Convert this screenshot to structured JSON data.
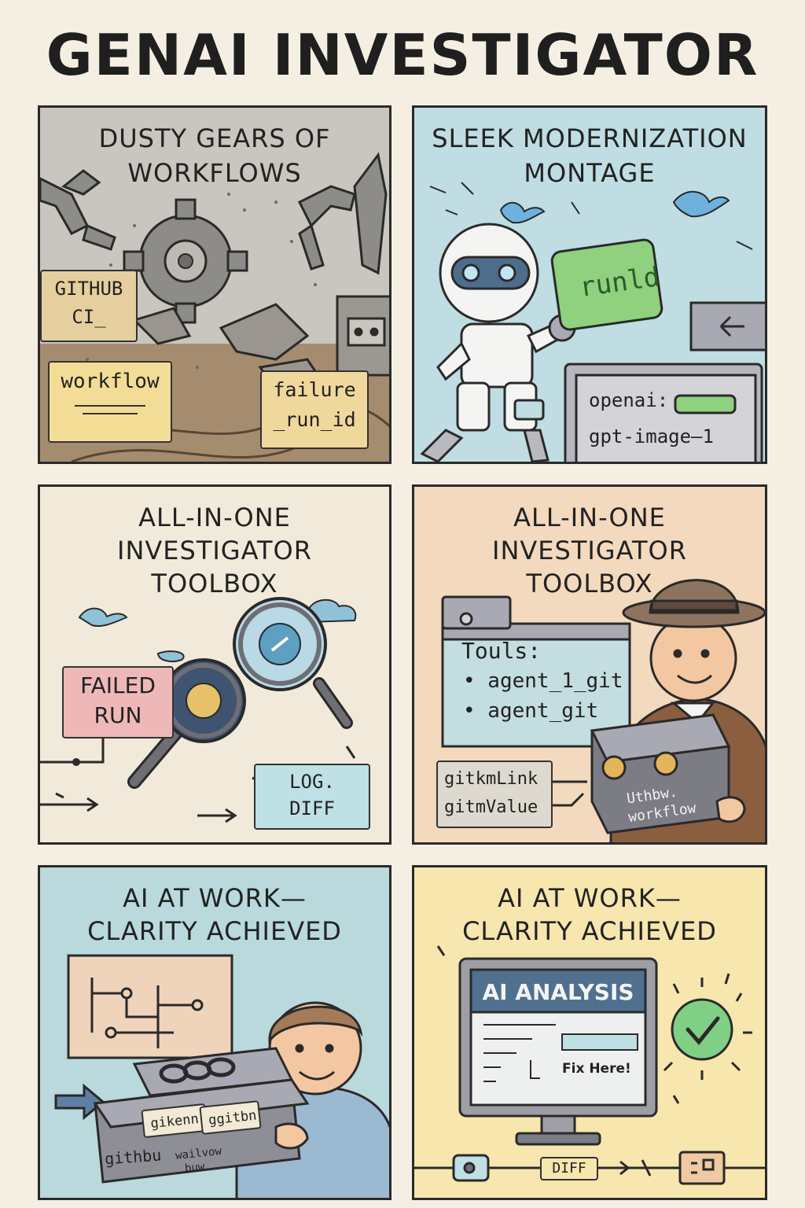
{
  "title": "GENAI INVESTIGATOR",
  "panels": [
    {
      "title_lines": [
        "DUSTY GEARS OF",
        "WORKFLOWS"
      ],
      "tags": {
        "github_ci_line1": "GITHUB",
        "github_ci_line2": "CI_",
        "workflow": "workflow",
        "failure_line1": "failure",
        "failure_line2": "_run_id"
      },
      "colors": {
        "bg": "#c9c6bf",
        "ground": "#a68c6e"
      }
    },
    {
      "title_lines": [
        "SLEEK MODERNIZATION",
        "MONTAGE"
      ],
      "tags": {
        "runid": "runld",
        "openai": "openai:",
        "model": "gpt-image—1"
      },
      "colors": {
        "bg": "#bfdde2",
        "card": "#8fd17e"
      }
    },
    {
      "title_lines": [
        "ALL-IN-ONE",
        "INVESTIGATOR",
        "TOOLBOX"
      ],
      "tags": {
        "failed_line1": "FAILED",
        "failed_line2": "RUN",
        "logdiff": "LOG. DIFF"
      },
      "colors": {
        "bg": "#f1eadb",
        "failed": "#efb8b8",
        "logdiff": "#bfe0e4"
      }
    },
    {
      "title_lines": [
        "ALL-IN-ONE",
        "INVESTIGATOR",
        "TOOLBOX"
      ],
      "tags": {
        "tools_heading": "Touls:",
        "tool1": "• agent_1_git",
        "tool2": "• agent_git",
        "link": "gitkmLink",
        "value": "gitmValue",
        "box_line1": "Uthbw.",
        "box_line2": "workflow"
      },
      "colors": {
        "bg": "#f3d9bd",
        "screen": "#c4dde0"
      }
    },
    {
      "title_lines": [
        "AI AT WORK—",
        "CLARITY ACHIEVED"
      ],
      "tags": {
        "label1": "gikenn",
        "label2": "ggitbn",
        "box_line1": "githbu",
        "box_line2": "wailvow",
        "box_line3": "buw"
      },
      "colors": {
        "bg": "#b9d9dc",
        "board": "#efd3bb"
      }
    },
    {
      "title_lines": [
        "AI AT WORK—",
        "CLARITY ACHIEVED"
      ],
      "tags": {
        "analysis": "AI ANALYSIS",
        "fix": "Fix Here!",
        "diff": "DIFF"
      },
      "colors": {
        "bg": "#f7e6ae",
        "check": "#7fcf85"
      }
    }
  ]
}
